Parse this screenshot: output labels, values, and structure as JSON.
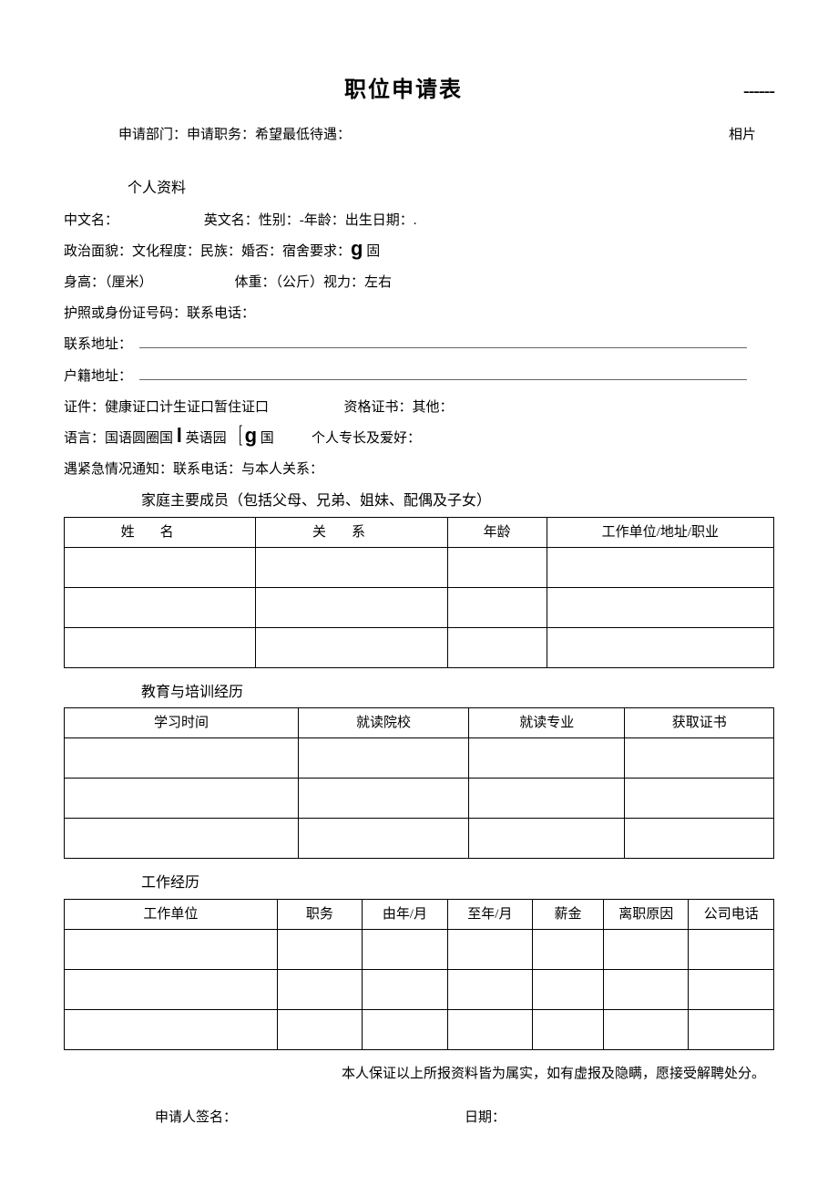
{
  "title": "职位申请表",
  "dashes": "------",
  "apply_line": "申请部门：申请职务：希望最低待遇：",
  "photo_label": "相片",
  "section_personal": "个人资料",
  "line_name": "中文名：                         英文名：性别：-年龄：出生日期：.",
  "line_politics_pre": "政治面貌：文化程度：民族：婚否：宿舍要求：",
  "glyph_g1": "g",
  "line_politics_post": " 固",
  "line_height": "身高：（厘米）                        体重：（公斤）视力：左右",
  "line_id": "护照或身份证号码：联系电话：",
  "line_contact_addr": "联系地址：",
  "line_residence_addr": "户籍地址：",
  "line_cert": "证件：健康证口计生证口暂住证口                      资格证书：其他：",
  "line_lang_pre": "语言：国语圆圈国 ",
  "glyph_l": "l",
  "line_lang_mid": " 英语园   ",
  "bracket_open": "[",
  "glyph_g2": "g",
  "line_lang_post": " 国           个人专长及爱好：",
  "line_emergency": "遇紧急情况通知：联系电话：与本人关系：",
  "section_family": "家庭主要成员（包括父母、兄弟、姐妹、配偶及子女）",
  "family_table": {
    "columns": [
      "姓名",
      "关系",
      "年龄",
      "工作单位/地址/职业"
    ],
    "col_widths": [
      "27%",
      "27%",
      "14%",
      "32%"
    ],
    "row_count": 3
  },
  "section_edu": "教育与培训经历",
  "edu_table": {
    "columns": [
      "学习时间",
      "就读院校",
      "就读专业",
      "获取证书"
    ],
    "col_widths": [
      "33%",
      "24%",
      "22%",
      "21%"
    ],
    "row_count": 3
  },
  "section_work": "工作经历",
  "work_table": {
    "columns": [
      "工作单位",
      "职务",
      "由年/月",
      "至年/月",
      "薪金",
      "离职原因",
      "公司电话"
    ],
    "col_widths": [
      "30%",
      "12%",
      "12%",
      "12%",
      "10%",
      "12%",
      "12%"
    ],
    "row_count": 3
  },
  "declaration": "本人保证以上所报资料皆为属实，如有虚报及隐瞒，愿接受解聘处分。",
  "signature_label": "申请人签名：",
  "date_label": "日期："
}
